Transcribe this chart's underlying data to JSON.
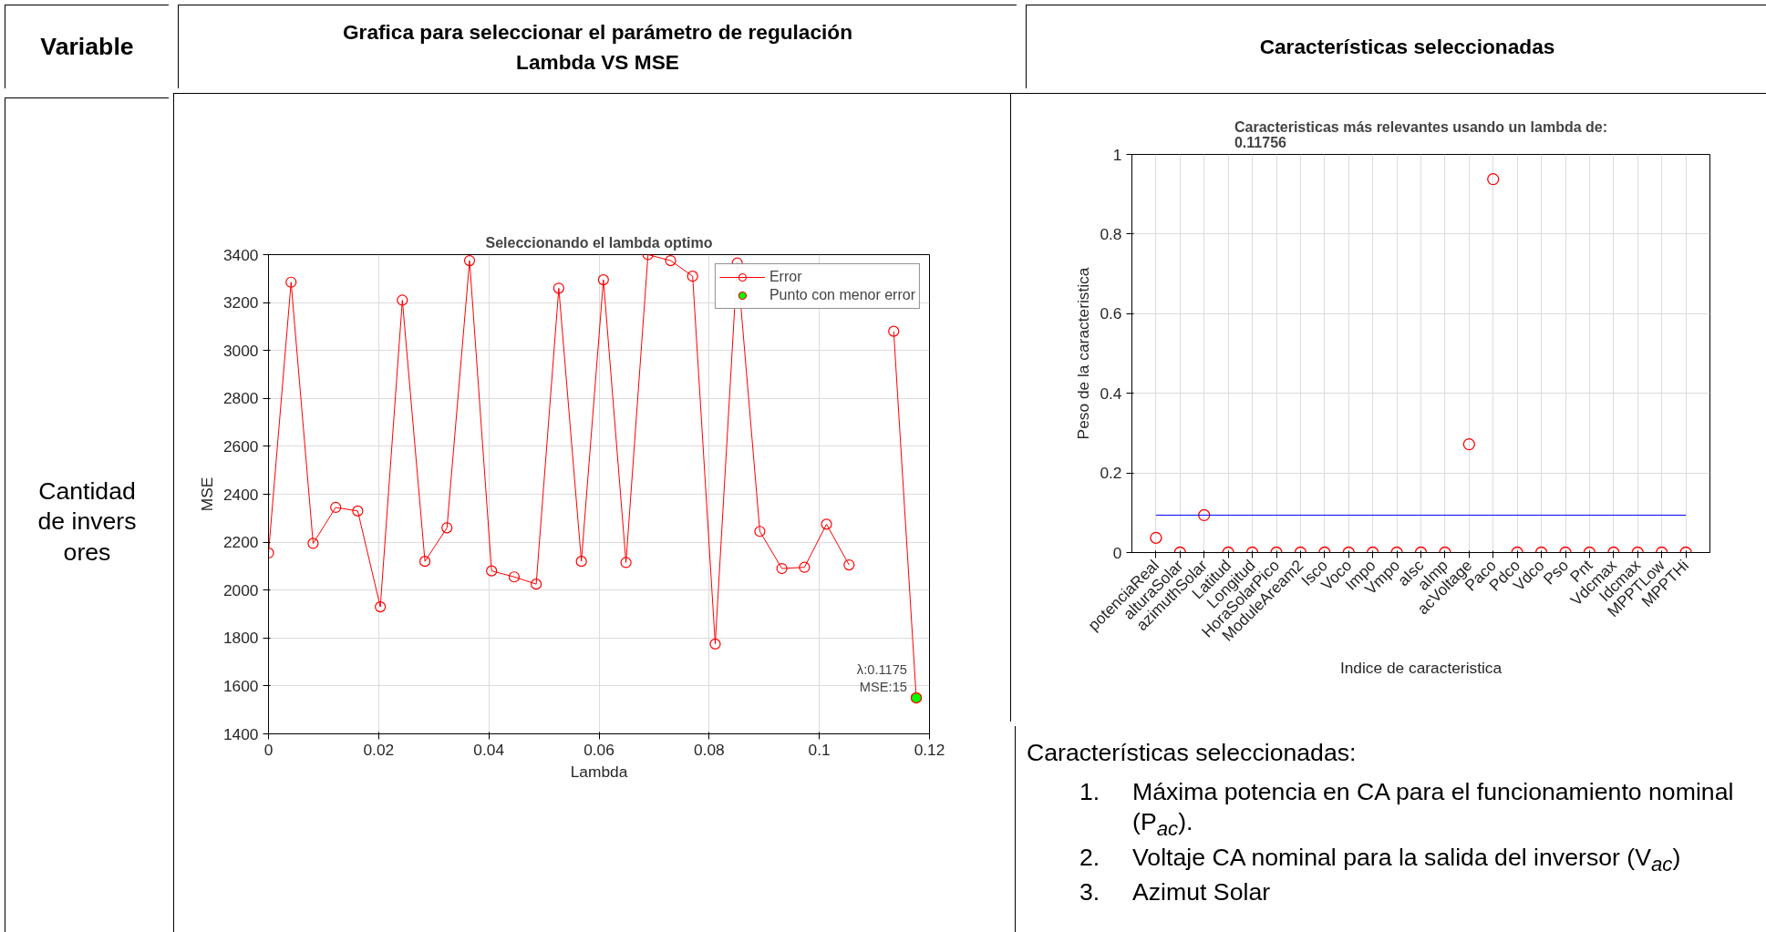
{
  "chart_data": [
    {
      "type": "line",
      "title": "Seleccionando el lambda optimo",
      "xlabel": "Lambda",
      "ylabel": "MSE",
      "xlim": [
        0,
        0.12
      ],
      "xticks": [
        0,
        0.02,
        0.04,
        0.06,
        0.08,
        0.1,
        0.12
      ],
      "ylim": [
        1400,
        3400
      ],
      "yticks": [
        1400,
        1600,
        1800,
        2000,
        2200,
        2400,
        2600,
        2800,
        3000,
        3200,
        3400
      ],
      "grid": true,
      "legend": "top right",
      "marker": "circle",
      "line_style": "solid",
      "series": [
        {
          "name": "Error",
          "color": "#ff0000",
          "x": [
            0,
            0.0041,
            0.0081,
            0.0122,
            0.0162,
            0.0203,
            0.0243,
            0.0284,
            0.0324,
            0.0365,
            0.0405,
            0.0446,
            0.0486,
            0.0527,
            0.0568,
            0.0608,
            0.0649,
            0.0689,
            0.073,
            0.077,
            0.0811,
            0.0851,
            0.0892,
            0.0932,
            0.0973,
            0.1013,
            0.1054,
            0.1094,
            0.1135,
            0.1176
          ],
          "values": [
            2155,
            3285,
            2195,
            2345,
            2330,
            1930,
            3210,
            2120,
            2260,
            3375,
            2080,
            2055,
            2025,
            3260,
            2120,
            3295,
            2115,
            3400,
            3375,
            3310,
            1775,
            3365,
            2245,
            2090,
            2095,
            2275,
            2105,
            null,
            3080,
            1550
          ]
        },
        {
          "name": "Punto con menor error",
          "type": "scatter",
          "color": "#00ff00",
          "x": [
            0.1176
          ],
          "values": [
            1550
          ]
        }
      ],
      "annotations": [
        {
          "text": "λ:0.1175\nMSE:15",
          "x": 0.1176,
          "y": 1550
        }
      ]
    },
    {
      "type": "scatter",
      "title": "Caracteristicas más relevantes usando un lambda de:\n0.11756",
      "xlabel": "Indice de caracteristica",
      "ylabel": "Peso de la caracteristica",
      "ylim": [
        0,
        1
      ],
      "yticks": [
        0,
        0.2,
        0.4,
        0.6,
        0.8,
        1
      ],
      "grid": true,
      "marker": "circle",
      "color": "#ff0000",
      "categories": [
        "potenciaReal",
        "alturaSolar",
        "azimuthSolar",
        "Latitud",
        "Longitud",
        "HoraSolarPico",
        "ModuleAream2",
        "Isco",
        "Voco",
        "Impo",
        "Vmpo",
        "aIsc",
        "aImp",
        "acVoltage",
        "Paco",
        "Pdco",
        "Vdco",
        "Pso",
        "Pnt",
        "Vdcmax",
        "Idcmax",
        "MPPTLow",
        "MPPTHi"
      ],
      "values": [
        0.037,
        0,
        0.094,
        0,
        0,
        0,
        0,
        0,
        0,
        0,
        0,
        0,
        0,
        0.272,
        0.938,
        0,
        0,
        0,
        0,
        0,
        0,
        0,
        0
      ],
      "ref_lines": [
        {
          "axis": "y",
          "value": 0.094,
          "color": "#0000ff"
        }
      ]
    },
    {
      "type": "other",
      "annotations": [
        "Variable",
        "Grafica para seleccionar el parámetro de regulación\nLambda VS MSE",
        "Características seleccionadas",
        "Cantidad de inversores",
        "Características seleccionadas:",
        "1.",
        "Máxima potencia en CA para el funcionamiento nominal (P$_{ac}$).",
        "2.",
        "Voltaje CA nominal para la salida del inversor (V$_{ac}$)",
        "3.",
        "Azimut Solar"
      ]
    }
  ]
}
